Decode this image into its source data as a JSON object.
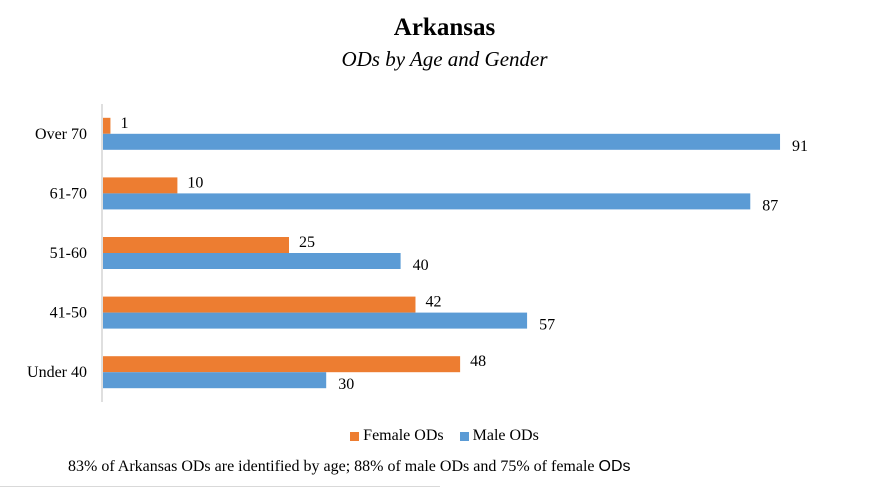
{
  "chart_data": {
    "type": "bar",
    "orientation": "horizontal",
    "title": "Arkansas",
    "subtitle": "ODs by Age and Gender",
    "categories": [
      "Over 70",
      "61-70",
      "51-60",
      "41-50",
      "Under 40"
    ],
    "series": [
      {
        "name": "Female ODs",
        "color": "#ED7D31",
        "values": [
          1,
          10,
          25,
          42,
          48
        ]
      },
      {
        "name": "Male ODs",
        "color": "#5B9BD5",
        "values": [
          91,
          87,
          40,
          57,
          30
        ]
      }
    ],
    "xlim": [
      0,
      100
    ],
    "grid": false,
    "legend_position": "bottom",
    "data_labels": true
  },
  "footnote": {
    "main": "83% of Arkansas ODs are identified by age; 88% of male ODs and 75% of female",
    "tail": "ODs"
  }
}
